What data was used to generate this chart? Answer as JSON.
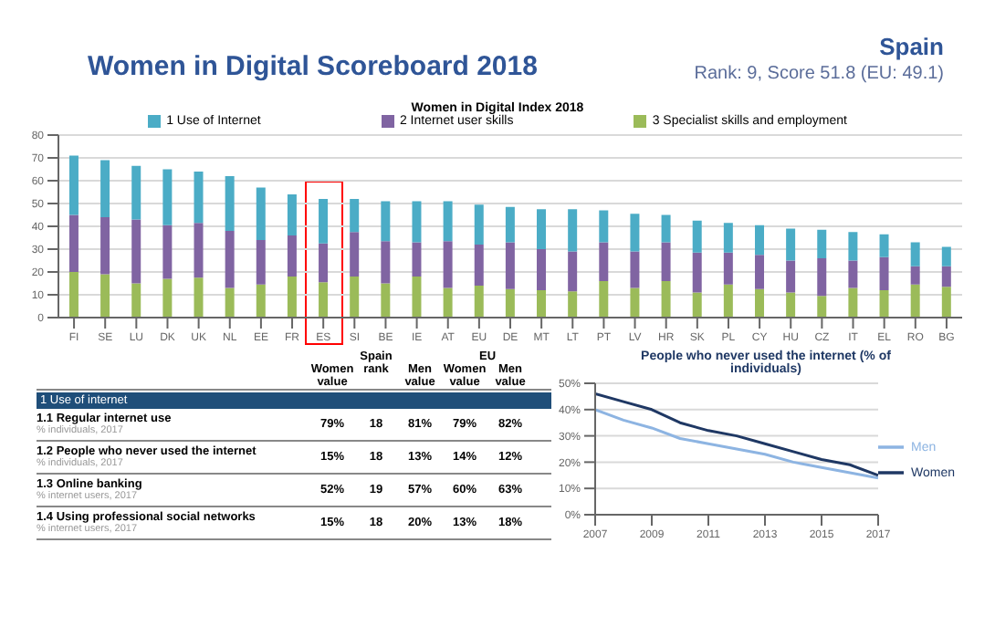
{
  "chart_data": [
    {
      "type": "other",
      "title": "Women in Digital Scoreboard 2018",
      "subtitle": "Spain",
      "annotations": [
        "Rank: 9, Score 51.8 (EU: 49.1)"
      ]
    },
    {
      "type": "bar",
      "title": "Women in Digital Index 2018",
      "stacked": true,
      "categories": [
        "FI",
        "SE",
        "LU",
        "DK",
        "UK",
        "NL",
        "EE",
        "FR",
        "ES",
        "SI",
        "BE",
        "IE",
        "AT",
        "EU",
        "DE",
        "MT",
        "LT",
        "PT",
        "LV",
        "HR",
        "SK",
        "PL",
        "CY",
        "HU",
        "CZ",
        "IT",
        "EL",
        "RO",
        "BG"
      ],
      "series": [
        {
          "name": "3 Specialist skills and employment",
          "color": "#9bbb59",
          "values": [
            20,
            19,
            15,
            17,
            17.5,
            13,
            14.5,
            18,
            15.5,
            18,
            15,
            18,
            13,
            14,
            12.5,
            12,
            11.5,
            16,
            13,
            16,
            11,
            14.5,
            12.5,
            11,
            9.5,
            13,
            12,
            14.5,
            13.5
          ]
        },
        {
          "name": "2 Internet user skills",
          "color": "#8064a2",
          "values": [
            25,
            25,
            28,
            23.5,
            24,
            25,
            19.5,
            18,
            17,
            19.5,
            18.5,
            15,
            20.5,
            18,
            20.5,
            18,
            17.5,
            17,
            16,
            17,
            17.5,
            14,
            15,
            14,
            16.5,
            12,
            14.5,
            8,
            9
          ]
        },
        {
          "name": "1 Use of Internet",
          "color": "#4bacc6",
          "values": [
            26,
            25,
            23.5,
            24.5,
            22.5,
            24,
            23,
            18,
            19.5,
            14.5,
            17.5,
            18,
            17.5,
            17.5,
            15.5,
            17.5,
            18.5,
            14,
            16.5,
            12,
            14,
            13,
            13,
            14,
            12.5,
            12.5,
            10,
            10.5,
            8.5
          ]
        }
      ],
      "ylim": [
        0,
        80
      ],
      "yticks": [
        0,
        10,
        20,
        30,
        40,
        50,
        60,
        70,
        80
      ],
      "grid": "y",
      "legend": "top"
    },
    {
      "type": "other",
      "annotations": [
        "Spain",
        "EU"
      ],
      "categories": [
        "Women value",
        "rank",
        "Men value",
        "Women value",
        "Men value"
      ],
      "y_categories": [
        "1 Use of internet",
        "1.1 Regular internet use",
        "1.2 People who never used the internet",
        "1.3 Online banking",
        "1.4 Using professional social networks"
      ],
      "y2_categories": [
        null,
        "% individuals, 2017",
        "% individuals, 2017",
        "% internet users, 2017",
        "% internet users, 2017"
      ],
      "cell_labels": [
        null,
        [
          "79%",
          "18",
          "81%",
          "79%",
          "82%"
        ],
        [
          "15%",
          "18",
          "13%",
          "14%",
          "12%"
        ],
        [
          "52%",
          "19",
          "57%",
          "60%",
          "63%"
        ],
        [
          "15%",
          "18",
          "20%",
          "13%",
          "18%"
        ]
      ]
    },
    {
      "type": "line",
      "title": "People who never used the internet (% of individuals)",
      "x": [
        2007,
        2008,
        2009,
        2010,
        2011,
        2012,
        2013,
        2014,
        2015,
        2016,
        2017
      ],
      "series": [
        {
          "name": "Women",
          "color": "#1f3864",
          "values": [
            46,
            43,
            40,
            35,
            32,
            30,
            27,
            24,
            21,
            19,
            15
          ]
        },
        {
          "name": "Men",
          "color": "#8db4e2",
          "values": [
            40,
            36,
            33,
            29,
            27,
            25,
            23,
            20,
            18,
            16,
            14
          ]
        }
      ],
      "xlim": [
        2007,
        2017
      ],
      "xticks": [
        2007,
        2009,
        2011,
        2013,
        2015,
        2017
      ],
      "ylim": [
        0,
        50
      ],
      "yticks": [
        {
          "value": 0,
          "label": "0%"
        },
        {
          "value": 10,
          "label": "10%"
        },
        {
          "value": 20,
          "label": "20%"
        },
        {
          "value": 30,
          "label": "30%"
        },
        {
          "value": 40,
          "label": "40%"
        },
        {
          "value": 50,
          "label": "50%"
        }
      ],
      "grid": "y",
      "legend": "right",
      "marker": "none"
    }
  ]
}
